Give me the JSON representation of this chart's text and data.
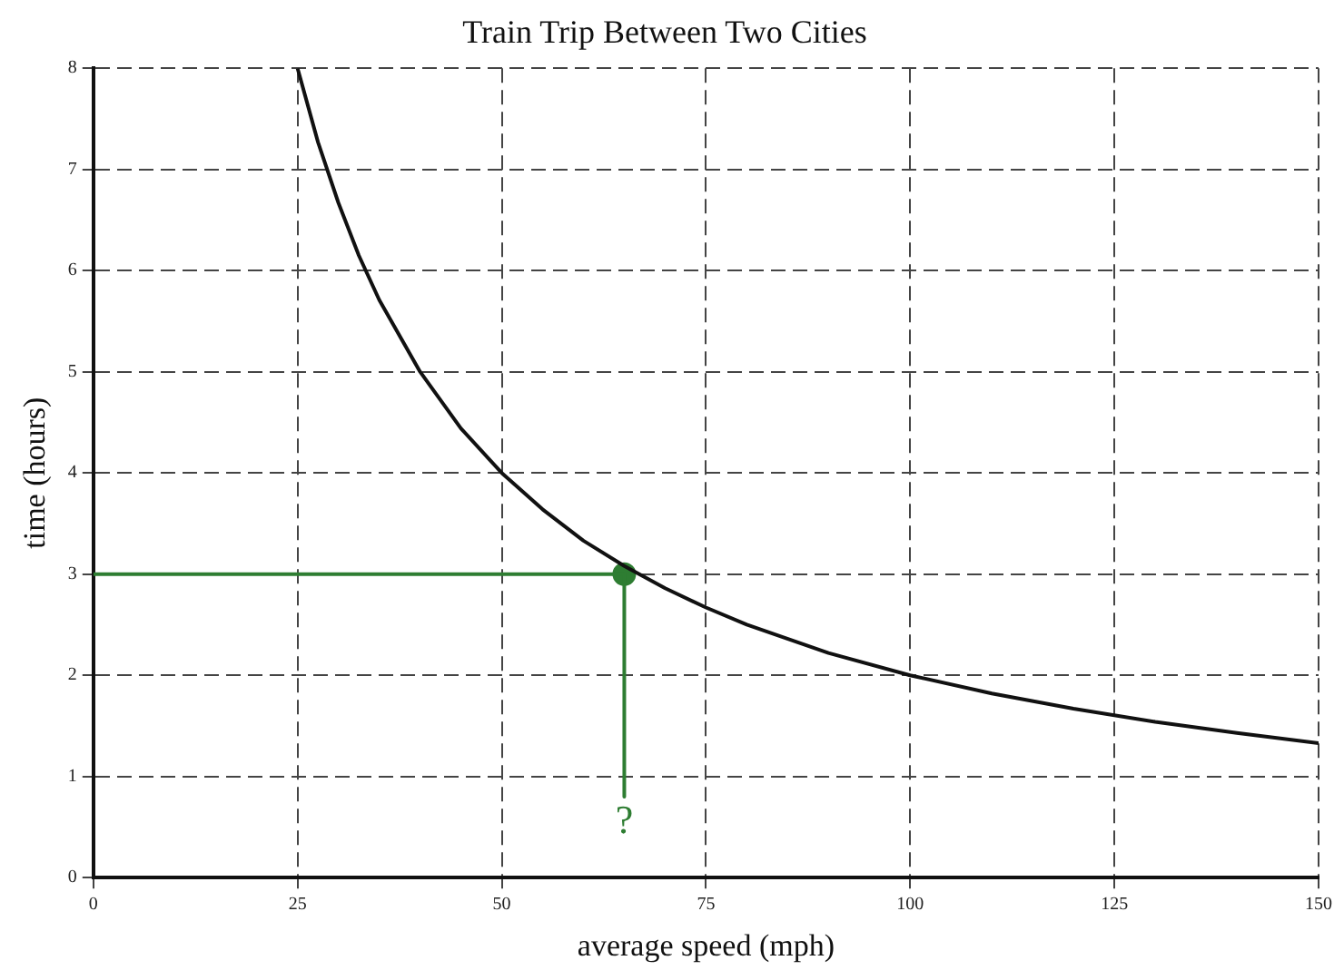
{
  "chart_data": {
    "type": "line",
    "title": "Train Trip Between Two Cities",
    "xlabel": "average speed (mph)",
    "ylabel": "time (hours)",
    "xlim": [
      0,
      150
    ],
    "xticks": [
      0,
      25,
      50,
      75,
      100,
      125,
      150
    ],
    "ylim": [
      0,
      8
    ],
    "yticks": [
      0,
      1,
      2,
      3,
      4,
      5,
      6,
      7,
      8
    ],
    "grid": true,
    "legend": false,
    "marker": "none",
    "series": [
      {
        "color": "#111111",
        "x": [
          25,
          27.5,
          30,
          32.5,
          35,
          40,
          45,
          50,
          55,
          60,
          65,
          70,
          75,
          80,
          90,
          100,
          110,
          120,
          130,
          140,
          150
        ],
        "values": [
          8,
          7.27,
          6.67,
          6.15,
          5.71,
          5,
          4.44,
          4,
          3.64,
          3.33,
          3.08,
          2.86,
          2.67,
          2.5,
          2.22,
          2,
          1.82,
          1.67,
          1.54,
          1.43,
          1.33
        ]
      },
      {
        "type": "line",
        "color": "#2e7d32",
        "x": [
          0,
          65,
          65
        ],
        "values": [
          3,
          3,
          0.8
        ]
      },
      {
        "type": "scatter",
        "color": "#2e7d32",
        "marker": "circle",
        "x": [
          65
        ],
        "values": [
          3
        ]
      }
    ],
    "annotations": [
      {
        "text": "?",
        "x": 65,
        "y": 0.8
      }
    ]
  }
}
